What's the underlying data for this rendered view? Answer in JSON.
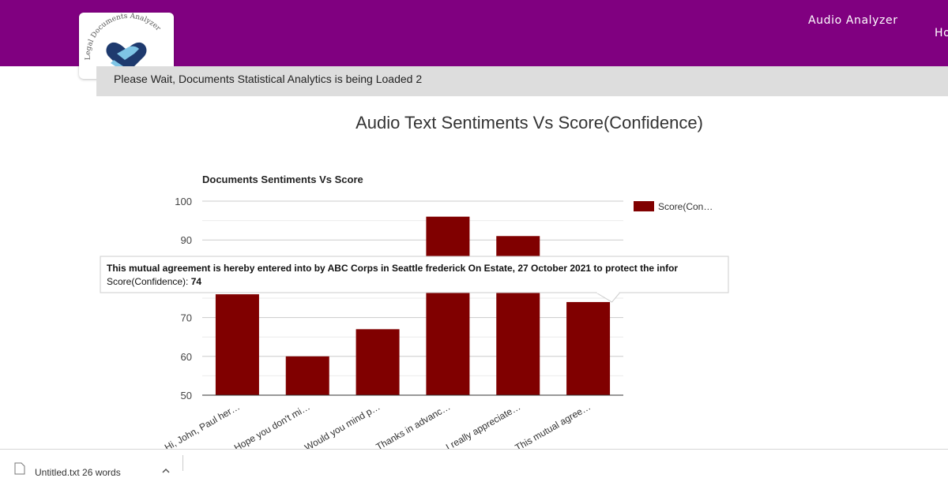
{
  "header": {
    "logo_text": "Legal Documents Analyzer",
    "nav": [
      "Audio Analyzer",
      "Ho"
    ],
    "colors": {
      "bar": "#800080"
    }
  },
  "status": {
    "loading_text": "Please Wait, Documents Statistical Analytics is being Loaded 2"
  },
  "page": {
    "title": "Audio Text Sentiments Vs Score(Confidence)"
  },
  "chart_data": {
    "type": "bar",
    "title": "Documents Sentiments Vs Score",
    "categories": [
      "Hi, John, Paul her…",
      "Hope you don't mi…",
      "Would you mind p…",
      "Thanks in advanc…",
      "I really appreciate…",
      "This mutual agree…"
    ],
    "series": [
      {
        "name": "Score(Con…",
        "values": [
          76,
          60,
          67,
          96,
          91,
          74
        ],
        "color": "#800000"
      }
    ],
    "ylim": [
      50,
      100
    ],
    "yticks": [
      50,
      60,
      70,
      80,
      90,
      100
    ],
    "grid": true,
    "legend": "right",
    "tooltip": {
      "title": "This mutual agreement is hereby entered into by ABC Corps in Seattle frederick On Estate, 27 October 2021 to protect the infor",
      "label": "Score(Confidence): ",
      "value": "74"
    }
  },
  "footer": {
    "file_name": "Untitled.txt    26 words"
  }
}
